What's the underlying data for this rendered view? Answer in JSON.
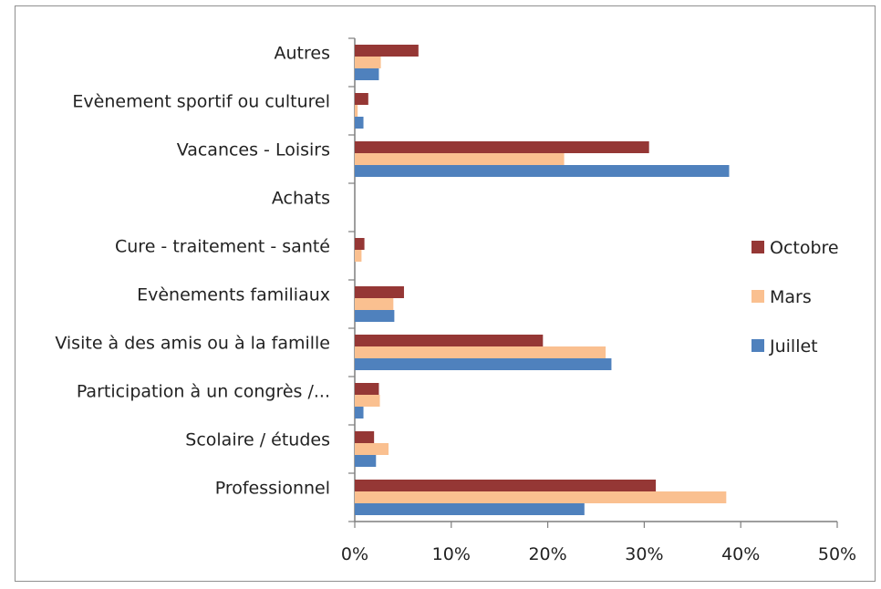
{
  "chart_data": {
    "type": "bar",
    "orientation": "horizontal",
    "categories": [
      "Autres",
      "Evènement sportif ou culturel",
      "Vacances - Loisirs",
      "Achats",
      "Cure - traitement - santé",
      "Evènements familiaux",
      "Visite à des amis ou à la famille",
      "Participation à un congrès /...",
      "Scolaire / études",
      "Professionnel"
    ],
    "series": [
      {
        "name": "Octobre",
        "color": "#953735",
        "values": [
          6.6,
          1.4,
          30.5,
          0,
          1.0,
          5.1,
          19.5,
          2.5,
          2.0,
          31.2
        ]
      },
      {
        "name": "Mars",
        "color": "#FAC090",
        "values": [
          2.7,
          0.3,
          21.7,
          0,
          0.7,
          4.0,
          26.0,
          2.6,
          3.5,
          38.5
        ]
      },
      {
        "name": "Juillet",
        "color": "#4F81BD",
        "values": [
          2.5,
          0.9,
          38.8,
          0,
          0,
          4.1,
          26.6,
          0.9,
          2.2,
          23.8
        ]
      }
    ],
    "xlim": [
      0,
      50
    ],
    "x_ticks": [
      "0%",
      "10%",
      "20%",
      "30%",
      "40%",
      "50%"
    ],
    "legend_position": "right",
    "grid": false
  }
}
